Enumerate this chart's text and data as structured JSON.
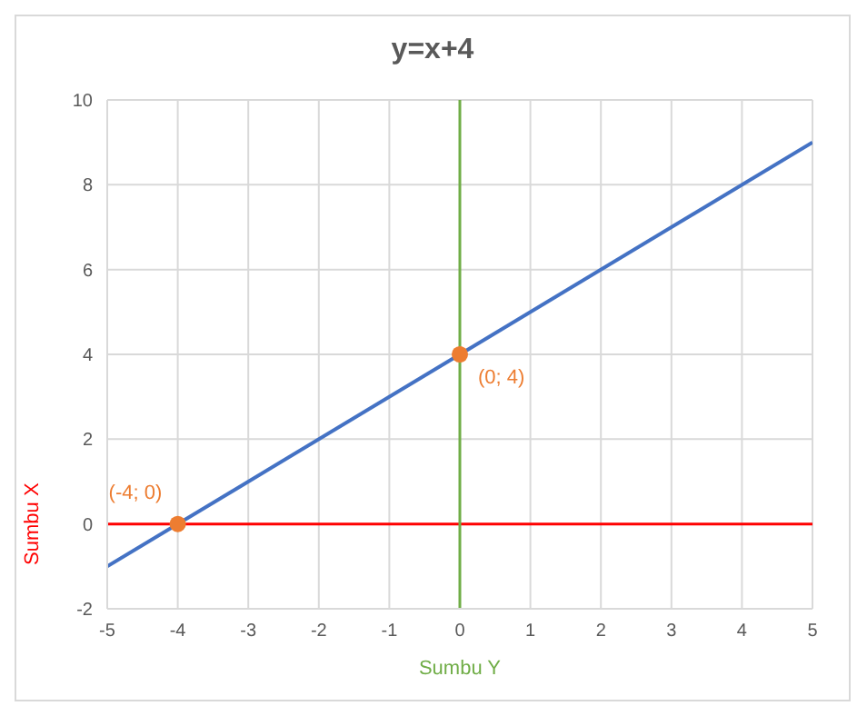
{
  "chart_data": {
    "type": "line",
    "title": "y=x+4",
    "xlim": [
      -5,
      5
    ],
    "xticks": [
      -5,
      -4,
      -3,
      -2,
      -1,
      0,
      1,
      2,
      3,
      4,
      5
    ],
    "ylim": [
      -2,
      10
    ],
    "yticks": [
      -2,
      0,
      2,
      4,
      6,
      8,
      10
    ],
    "grid": true,
    "series": [
      {
        "color": "#4472c4",
        "x": [
          -5,
          5
        ],
        "values": [
          -1,
          9
        ],
        "marker": "none"
      },
      {
        "type": "scatter",
        "color": "#ed7d31",
        "x": [
          -4,
          0
        ],
        "values": [
          0,
          4
        ],
        "marker": "circle"
      }
    ],
    "ref_lines": [
      {
        "axis": "y",
        "value": 0,
        "label": "Sumbu X",
        "color": "#ff0000"
      },
      {
        "axis": "x",
        "value": 0,
        "label": "Sumbu Y",
        "color": "#70ad47"
      }
    ],
    "annotations": [
      {
        "text": "(-4; 0)",
        "x": -4,
        "y": 0
      },
      {
        "text": "(0; 4)",
        "x": 0,
        "y": 4
      }
    ]
  }
}
